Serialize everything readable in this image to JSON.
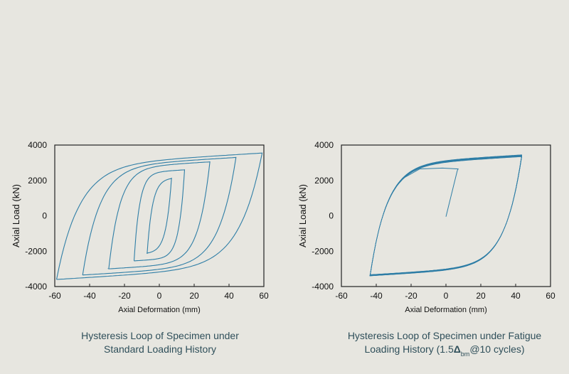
{
  "chart_data": [
    {
      "type": "line",
      "title": "Hysteresis Loop of Specimen under Standard Loading History",
      "caption_lines": [
        "Hysteresis Loop of Specimen under",
        "Standard Loading History"
      ],
      "xlabel": "Axial Deformation (mm)",
      "ylabel": "Axial Load (kN)",
      "xlim": [
        -60,
        60
      ],
      "ylim": [
        -4000,
        4000
      ],
      "xticks": [
        -60,
        -40,
        -20,
        0,
        20,
        40,
        60
      ],
      "yticks": [
        -4000,
        -2000,
        0,
        2000,
        4000
      ],
      "grid": false,
      "line_color": "#2f7ea6",
      "cycles": [
        {
          "amplitude": 7,
          "peak_tension": 2150,
          "peak_compression": -2150
        },
        {
          "amplitude": 14.5,
          "peak_tension": 2600,
          "peak_compression": -2550
        },
        {
          "amplitude": 29,
          "peak_tension": 3050,
          "peak_compression": -3000
        },
        {
          "amplitude": 44,
          "peak_tension": 3300,
          "peak_compression": -3350
        },
        {
          "amplitude": 59,
          "peak_tension": 3550,
          "peak_compression": -3600
        }
      ]
    },
    {
      "type": "line",
      "title": "Hysteresis Loop of Specimen under Fatigue Loading History (1.5Δbm@10 cycles)",
      "caption_line1": "Hysteresis Loop of Specimen under Fatigue",
      "caption_line2_pre": "Loading History (1.5",
      "caption_delta": "Δ",
      "caption_sub": "bm",
      "caption_line2_post": "@10 cycles)",
      "xlabel": "Axial Deformation (mm)",
      "ylabel": "Axial Load (kN)",
      "xlim": [
        -60,
        60
      ],
      "ylim": [
        -4000,
        4000
      ],
      "xticks": [
        -60,
        -40,
        -20,
        0,
        20,
        40,
        60
      ],
      "yticks": [
        -4000,
        -2000,
        0,
        2000,
        4000
      ],
      "grid": false,
      "line_color": "#2f7ea6",
      "initial_path": [
        [
          0,
          -50
        ],
        [
          6.5,
          2550
        ],
        [
          7,
          2650
        ],
        [
          -2,
          2700
        ],
        [
          -15,
          2650
        ],
        [
          -25,
          2100
        ]
      ],
      "cycles": [
        {
          "amplitude": 43.5,
          "peak_tension": 3450,
          "peak_compression": -3400,
          "repeats": 10
        }
      ]
    }
  ]
}
